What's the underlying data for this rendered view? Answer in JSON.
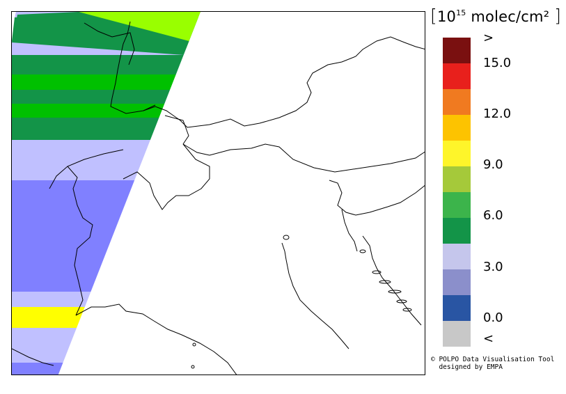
{
  "unit": {
    "open_bracket": "[",
    "base": "10",
    "exponent": "15",
    "text": " molec/cm²",
    "close_bracket": "]"
  },
  "legend": {
    "swatch_colors": [
      "#7a1010",
      "#e8201c",
      "#f07a20",
      "#fdc300",
      "#fef52a",
      "#a5c93a",
      "#3cb44b",
      "#139448",
      "#c5c6ec",
      "#8b8fcb",
      "#2955a3",
      "#c8c8c8"
    ],
    "labels": [
      ">",
      "15.0",
      "12.0",
      "9.0",
      "6.0",
      "3.0",
      "0.0",
      "<"
    ]
  },
  "credit": {
    "line1": "© POLPO Data Visualisation Tool",
    "line2": "  designed by EMPA"
  },
  "map_colors": {
    "lime": "#99ff00",
    "dark_green": "#139448",
    "green": "#00c000",
    "lavender": "#c0c0ff",
    "medium_blue": "#8080ff",
    "yellow": "#ffff00",
    "border": "#000000"
  }
}
